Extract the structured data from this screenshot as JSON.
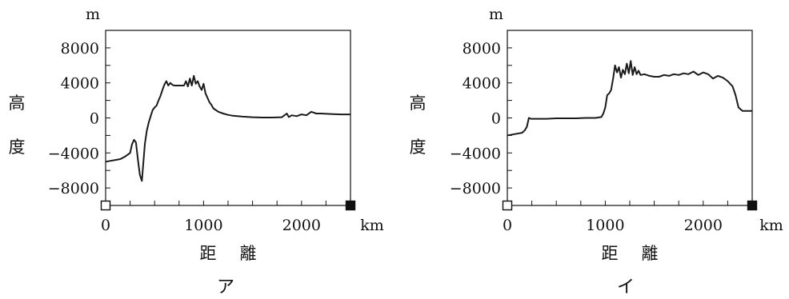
{
  "chart_data": [
    {
      "type": "line",
      "caption": "ア",
      "y_unit": "m",
      "x_unit": "km",
      "ylabel_chars": [
        "高",
        "度"
      ],
      "xlabel_chars": [
        "距",
        "離"
      ],
      "xlim": [
        0,
        2500
      ],
      "ylim": [
        -10000,
        10000
      ],
      "x_ticks": [
        0,
        1000,
        2000
      ],
      "x_tick_labels": [
        "0",
        "1000",
        "2000"
      ],
      "y_ticks": [
        8000,
        4000,
        0,
        -4000,
        -8000
      ],
      "y_tick_labels": [
        "8000",
        "4000",
        "0",
        "−4000",
        "−8000"
      ],
      "start_marker": "open-square",
      "end_marker": "filled-square",
      "series": [
        {
          "x": [
            0,
            50,
            100,
            150,
            200,
            250,
            270,
            290,
            310,
            330,
            350,
            370,
            390,
            400,
            420,
            440,
            460,
            480,
            500,
            520,
            540,
            560,
            580,
            600,
            620,
            640,
            660,
            680,
            700,
            750,
            800,
            820,
            840,
            860,
            880,
            900,
            920,
            940,
            960,
            980,
            1000,
            1020,
            1040,
            1060,
            1080,
            1100,
            1150,
            1200,
            1250,
            1300,
            1400,
            1500,
            1600,
            1700,
            1800,
            1850,
            1870,
            1900,
            1950,
            2000,
            2050,
            2100,
            2150,
            2200,
            2300,
            2400,
            2500
          ],
          "y": [
            -5000,
            -4900,
            -4800,
            -4700,
            -4400,
            -4000,
            -3000,
            -2500,
            -2800,
            -4800,
            -6500,
            -7200,
            -4500,
            -3000,
            -1500,
            -500,
            200,
            900,
            1200,
            1400,
            2000,
            2500,
            3200,
            3800,
            4200,
            3700,
            4000,
            3800,
            3700,
            3700,
            3700,
            4200,
            3600,
            4500,
            3700,
            4800,
            3900,
            4200,
            3600,
            3200,
            3900,
            2800,
            2300,
            1800,
            1500,
            1100,
            700,
            500,
            350,
            250,
            150,
            80,
            50,
            50,
            80,
            500,
            100,
            300,
            200,
            400,
            300,
            700,
            500,
            500,
            450,
            400,
            400
          ]
        }
      ]
    },
    {
      "type": "line",
      "caption": "イ",
      "y_unit": "m",
      "x_unit": "km",
      "ylabel_chars": [
        "高",
        "度"
      ],
      "xlabel_chars": [
        "距",
        "離"
      ],
      "xlim": [
        0,
        2500
      ],
      "ylim": [
        -10000,
        10000
      ],
      "x_ticks": [
        0,
        1000,
        2000
      ],
      "x_tick_labels": [
        "0",
        "1000",
        "2000"
      ],
      "y_ticks": [
        8000,
        4000,
        0,
        -4000,
        -8000
      ],
      "y_tick_labels": [
        "8000",
        "4000",
        "0",
        "−4000",
        "−8000"
      ],
      "start_marker": "open-square",
      "end_marker": "filled-square",
      "series": [
        {
          "x": [
            0,
            50,
            100,
            150,
            180,
            200,
            220,
            240,
            300,
            400,
            500,
            600,
            700,
            800,
            900,
            960,
            980,
            1000,
            1020,
            1040,
            1060,
            1080,
            1100,
            1120,
            1140,
            1160,
            1180,
            1200,
            1220,
            1240,
            1260,
            1280,
            1300,
            1320,
            1340,
            1360,
            1400,
            1450,
            1500,
            1550,
            1600,
            1650,
            1700,
            1750,
            1800,
            1850,
            1900,
            1950,
            2000,
            2050,
            2100,
            2150,
            2200,
            2250,
            2300,
            2330,
            2360,
            2400,
            2450,
            2500
          ],
          "y": [
            -2000,
            -1900,
            -1800,
            -1700,
            -1400,
            -1000,
            0,
            -100,
            -100,
            -100,
            -50,
            -50,
            -50,
            0,
            0,
            100,
            500,
            1200,
            2600,
            2800,
            3200,
            4500,
            6000,
            5200,
            5800,
            4600,
            5500,
            5000,
            6200,
            5100,
            6500,
            4900,
            5800,
            5000,
            5400,
            4900,
            5000,
            4800,
            4700,
            4700,
            4900,
            4800,
            5000,
            4900,
            5100,
            5000,
            5300,
            4900,
            5200,
            5000,
            4500,
            4800,
            4600,
            4200,
            3600,
            2600,
            1200,
            800,
            800,
            800
          ]
        }
      ]
    }
  ]
}
